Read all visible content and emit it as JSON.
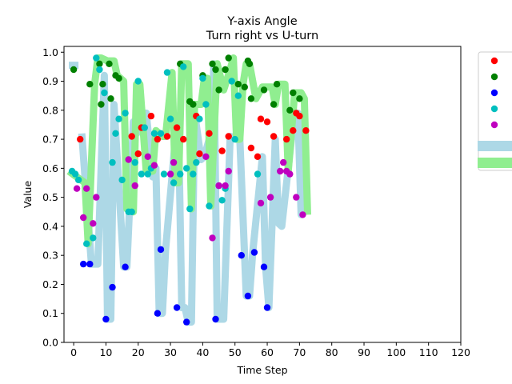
{
  "chart_data": {
    "type": "scatter",
    "title": "Y-axis Angle",
    "subtitle": "Turn right vs U-turn",
    "xlabel": "Time Step",
    "ylabel": "Value",
    "xlim": [
      -3,
      120
    ],
    "ylim": [
      0,
      1.02
    ],
    "xticks": [
      0,
      10,
      20,
      30,
      40,
      50,
      60,
      70,
      80,
      90,
      100,
      110,
      120
    ],
    "yticks": [
      0.0,
      0.1,
      0.2,
      0.3,
      0.4,
      0.5,
      0.6,
      0.7,
      0.8,
      0.9,
      1.0
    ],
    "grid": false,
    "legend": {
      "placement": "right, outside plot area"
    },
    "bands": [
      {
        "color": "#add8e6",
        "x": [
          -1.5,
          1.5
        ],
        "values": [
          0.955,
          0.955
        ]
      },
      {
        "color": "#add8e6",
        "x": [
          2.5,
          5.5,
          7.5,
          9.5,
          10.5,
          11.5,
          12.5,
          15.5,
          16.5,
          18.5,
          19.5,
          21.5,
          22.5,
          24.5,
          25.5,
          26.5,
          27.5,
          28.5,
          31.5,
          32.5,
          33.5,
          34.5,
          35.5,
          36.5,
          37.5,
          39.5,
          40.5,
          42.5,
          43.5,
          44.5,
          46.5,
          48.5,
          51.5,
          53.5,
          54.5,
          55.5,
          58.5,
          59.5,
          60.5,
          62.5,
          63.5,
          64.5,
          66.5,
          67.5,
          68.5,
          69.5,
          70.5,
          71.5,
          72.5
        ],
        "values": [
          0.72,
          0.27,
          0.27,
          0.92,
          0.08,
          0.08,
          0.82,
          0.26,
          0.26,
          0.76,
          0.72,
          0.74,
          0.79,
          0.57,
          0.6,
          0.1,
          0.1,
          0.32,
          0.7,
          0.74,
          0.12,
          0.12,
          0.07,
          0.07,
          0.79,
          0.63,
          0.64,
          0.72,
          0.96,
          0.08,
          0.08,
          0.71,
          0.7,
          0.16,
          0.16,
          0.31,
          0.64,
          0.26,
          0.12,
          0.7,
          0.41,
          0.4,
          0.6,
          0.7,
          0.73,
          0.79,
          0.44,
          0.73,
          0.73
        ]
      },
      {
        "color": "#90ee90",
        "x": [
          -1.5,
          3.5,
          4.5,
          6.5,
          7.5,
          8.5,
          10.5,
          12.5,
          13.5,
          15.5,
          16.5,
          18.5,
          19.5,
          20.5,
          22.5,
          24.5,
          25.5,
          27.5,
          28.5,
          30.5,
          31.5,
          32.5,
          33.5,
          35.5,
          36.5,
          37.5,
          39.5,
          40.5,
          41.5,
          42.5,
          44.5,
          46.5,
          48.5,
          49.5,
          50.5,
          51.5,
          52.5,
          53.5,
          54.5,
          56.5,
          58.5,
          60.5,
          61.5,
          62.5,
          63.5,
          65.5,
          66.5,
          68.5,
          70.5,
          71.5,
          72.5
        ],
        "values": [
          0.59,
          0.55,
          0.34,
          0.89,
          0.98,
          0.98,
          0.97,
          0.97,
          0.92,
          0.9,
          0.46,
          0.45,
          0.89,
          0.89,
          0.59,
          0.59,
          0.73,
          0.71,
          0.71,
          0.93,
          0.55,
          0.55,
          0.96,
          0.96,
          0.46,
          0.82,
          0.82,
          0.91,
          0.91,
          0.47,
          0.96,
          0.87,
          0.94,
          0.98,
          0.7,
          0.7,
          0.89,
          0.96,
          0.96,
          0.84,
          0.88,
          0.88,
          0.88,
          0.82,
          0.89,
          0.89,
          0.59,
          0.86,
          0.86,
          0.84,
          0.44
        ]
      }
    ],
    "series": [
      {
        "color": "#ff0000",
        "x": [
          2,
          18,
          20,
          21,
          24,
          26,
          29,
          32,
          34,
          38,
          39,
          42,
          46,
          48,
          55,
          57,
          58,
          60,
          62,
          66,
          68,
          69,
          70,
          72
        ],
        "values": [
          0.7,
          0.71,
          0.65,
          0.74,
          0.78,
          0.7,
          0.71,
          0.74,
          0.7,
          0.78,
          0.65,
          0.72,
          0.66,
          0.71,
          0.67,
          0.64,
          0.77,
          0.76,
          0.71,
          0.7,
          0.73,
          0.79,
          0.78,
          0.73
        ]
      },
      {
        "color": "#008000",
        "x": [
          0,
          5,
          8,
          8.5,
          9,
          11,
          11.5,
          13,
          14,
          33,
          36,
          37,
          40,
          43,
          44,
          45,
          47,
          48,
          51,
          53,
          54,
          54.5,
          55,
          59,
          62,
          63,
          67,
          68,
          70
        ],
        "values": [
          0.94,
          0.89,
          0.96,
          0.82,
          0.89,
          0.96,
          0.84,
          0.92,
          0.91,
          0.96,
          0.83,
          0.82,
          0.92,
          0.96,
          0.94,
          0.87,
          0.94,
          0.98,
          0.89,
          0.88,
          0.97,
          0.96,
          0.84,
          0.87,
          0.82,
          0.89,
          0.8,
          0.86,
          0.84
        ]
      },
      {
        "color": "#0000ff",
        "x": [
          3,
          5,
          10,
          12,
          16,
          26,
          27,
          32,
          35,
          44,
          52,
          54,
          56,
          59,
          60
        ],
        "values": [
          0.27,
          0.27,
          0.08,
          0.19,
          0.26,
          0.1,
          0.32,
          0.12,
          0.07,
          0.08,
          0.3,
          0.16,
          0.31,
          0.26,
          0.12
        ]
      },
      {
        "color": "#00bfbf",
        "x": [
          -0.5,
          0.5,
          1.5,
          4,
          6,
          7,
          8,
          9.5,
          12,
          13,
          14,
          15,
          16,
          17,
          18,
          19,
          20,
          21,
          22,
          23,
          24,
          25,
          27,
          28,
          29,
          30,
          31,
          33,
          34,
          35,
          36,
          37,
          38,
          39,
          40,
          41,
          42,
          45,
          46,
          47,
          49,
          50,
          51,
          57
        ],
        "values": [
          0.59,
          0.58,
          0.56,
          0.34,
          0.36,
          0.98,
          0.94,
          0.86,
          0.62,
          0.72,
          0.77,
          0.56,
          0.79,
          0.45,
          0.45,
          0.62,
          0.9,
          0.58,
          0.74,
          0.58,
          0.6,
          0.72,
          0.72,
          0.58,
          0.93,
          0.77,
          0.55,
          0.58,
          0.95,
          0.6,
          0.46,
          0.58,
          0.62,
          0.77,
          0.91,
          0.82,
          0.47,
          0.54,
          0.49,
          0.53,
          0.9,
          0.7,
          0.85,
          0.58
        ]
      },
      {
        "color": "#bf00bf",
        "x": [
          1,
          3,
          4,
          6,
          7,
          17,
          19,
          23,
          25,
          30,
          31,
          41,
          43,
          45,
          47,
          48,
          58,
          61,
          64,
          65,
          66,
          67,
          69,
          71
        ],
        "values": [
          0.53,
          0.43,
          0.53,
          0.41,
          0.5,
          0.63,
          0.54,
          0.64,
          0.61,
          0.58,
          0.62,
          0.64,
          0.36,
          0.54,
          0.54,
          0.59,
          0.48,
          0.5,
          0.59,
          0.62,
          0.59,
          0.58,
          0.5,
          0.44
        ]
      }
    ],
    "legend_entries": [
      {
        "kind": "dot",
        "color": "#ff0000"
      },
      {
        "kind": "dot",
        "color": "#008000"
      },
      {
        "kind": "dot",
        "color": "#0000ff"
      },
      {
        "kind": "dot",
        "color": "#00bfbf"
      },
      {
        "kind": "dot",
        "color": "#bf00bf"
      },
      {
        "kind": "patch",
        "color": "#add8e6"
      },
      {
        "kind": "patch",
        "color": "#90ee90"
      }
    ]
  }
}
